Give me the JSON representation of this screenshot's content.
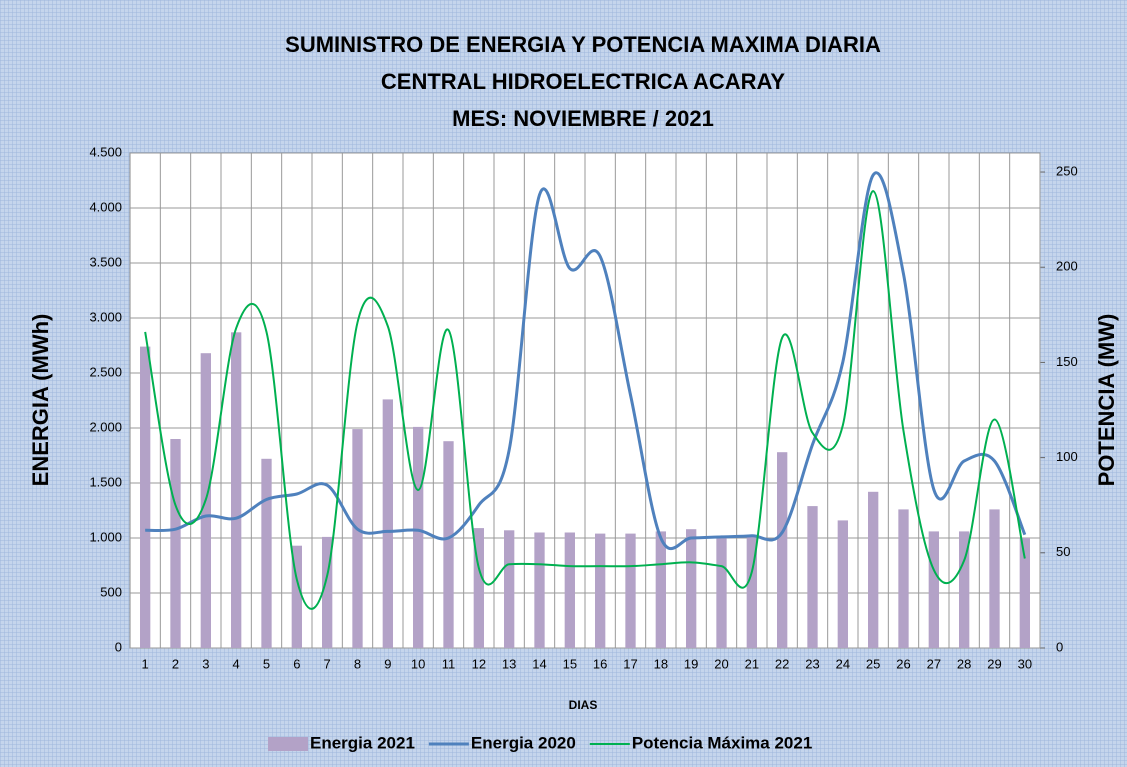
{
  "chart_data": {
    "type": "combo",
    "title": [
      "SUMINISTRO DE ENERGIA  Y POTENCIA MAXIMA DIARIA",
      "CENTRAL HIDROELECTRICA ACARAY",
      "MES:  NOVIEMBRE / 2021"
    ],
    "x_label": "DIAS",
    "y_label": "ENERGIA (MWh)",
    "y2_label": "POTENCIA (MW)",
    "categories": [
      "1",
      "2",
      "3",
      "4",
      "5",
      "6",
      "7",
      "8",
      "9",
      "10",
      "11",
      "12",
      "13",
      "14",
      "15",
      "16",
      "17",
      "18",
      "19",
      "20",
      "21",
      "22",
      "23",
      "24",
      "25",
      "26",
      "27",
      "28",
      "29",
      "30"
    ],
    "series": [
      {
        "name": "Energia 2021",
        "type": "bar",
        "color": "#b3a2c7",
        "values": [
          2740,
          1900,
          2680,
          2870,
          1720,
          930,
          1010,
          1990,
          2260,
          2010,
          1880,
          1090,
          1070,
          1050,
          1050,
          1040,
          1040,
          1060,
          1080,
          1020,
          1020,
          1780,
          1290,
          1160,
          1420,
          1260,
          1060,
          1060,
          1260,
          1000
        ]
      },
      {
        "name": "Energia 2020",
        "type": "line",
        "color": "#4f81bd",
        "values": [
          1070,
          1080,
          1200,
          1180,
          1350,
          1400,
          1480,
          1080,
          1060,
          1070,
          1000,
          1300,
          1800,
          4120,
          3450,
          3560,
          2300,
          1000,
          1000,
          1010,
          1020,
          1050,
          1850,
          2600,
          4300,
          3400,
          1440,
          1700,
          1700,
          1030
        ]
      },
      {
        "name": "Potencia Máxima 2021",
        "type": "line",
        "axis": "y2",
        "color": "#00b050",
        "values": [
          166,
          75,
          78,
          168,
          166,
          36,
          38,
          171,
          169,
          83,
          167,
          42,
          44,
          44,
          43,
          43,
          43,
          44,
          45,
          43,
          40,
          163,
          113,
          117,
          240,
          114,
          41,
          46,
          120,
          47
        ]
      }
    ],
    "ylim": [
      0,
      4500
    ],
    "yticks": [
      0,
      {
        "value": 500,
        "label": "500"
      },
      {
        "value": 1000,
        "label": "1.000"
      },
      {
        "value": 1500,
        "label": "1.500"
      },
      {
        "value": 2000,
        "label": "2.000"
      },
      {
        "value": 2500,
        "label": "2.500"
      },
      {
        "value": 3000,
        "label": "3.000"
      },
      {
        "value": 3500,
        "label": "3.500"
      },
      {
        "value": 4000,
        "label": "4.000"
      },
      {
        "value": 4500,
        "label": "4.500"
      }
    ],
    "y2lim": [
      0,
      260
    ],
    "y2ticks": [
      0,
      50,
      100,
      150,
      200,
      250
    ],
    "grid": true,
    "legend": "bottom"
  }
}
